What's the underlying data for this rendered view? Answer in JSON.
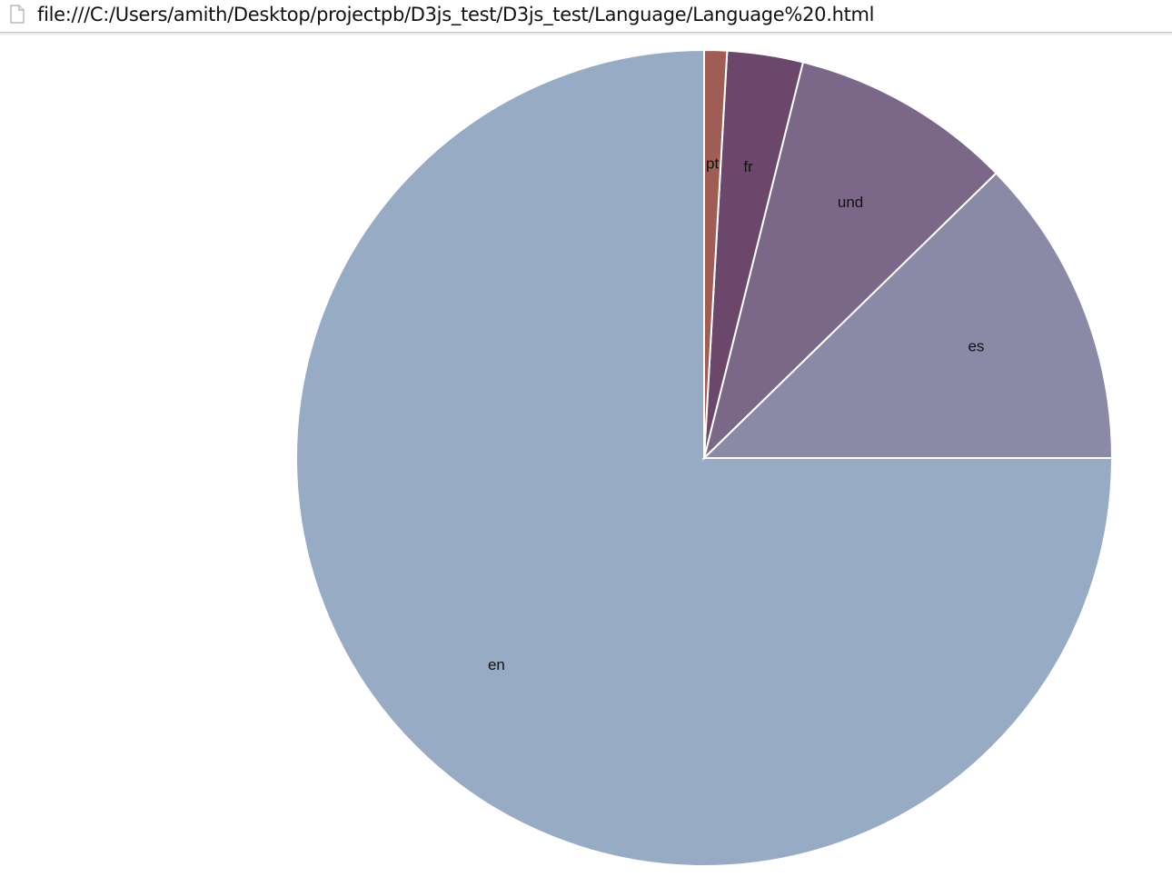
{
  "browser": {
    "url": "file:///C:/Users/amith/Desktop/projectpb/D3js_test/D3js_test/Language/Language%20.html",
    "page_icon": "document-icon"
  },
  "chart_data": {
    "type": "pie",
    "title": "",
    "start_angle": "top",
    "direction": "counterclockwise",
    "slices": [
      {
        "label": "en",
        "value": 75.0,
        "color": "#98abc5"
      },
      {
        "label": "es",
        "value": 12.3,
        "color": "#8a89a6"
      },
      {
        "label": "und",
        "value": 8.8,
        "color": "#7b6888"
      },
      {
        "label": "fr",
        "value": 3.0,
        "color": "#6b486b"
      },
      {
        "label": "pt",
        "value": 0.9,
        "color": "#a05d56"
      }
    ],
    "legend": "none"
  }
}
